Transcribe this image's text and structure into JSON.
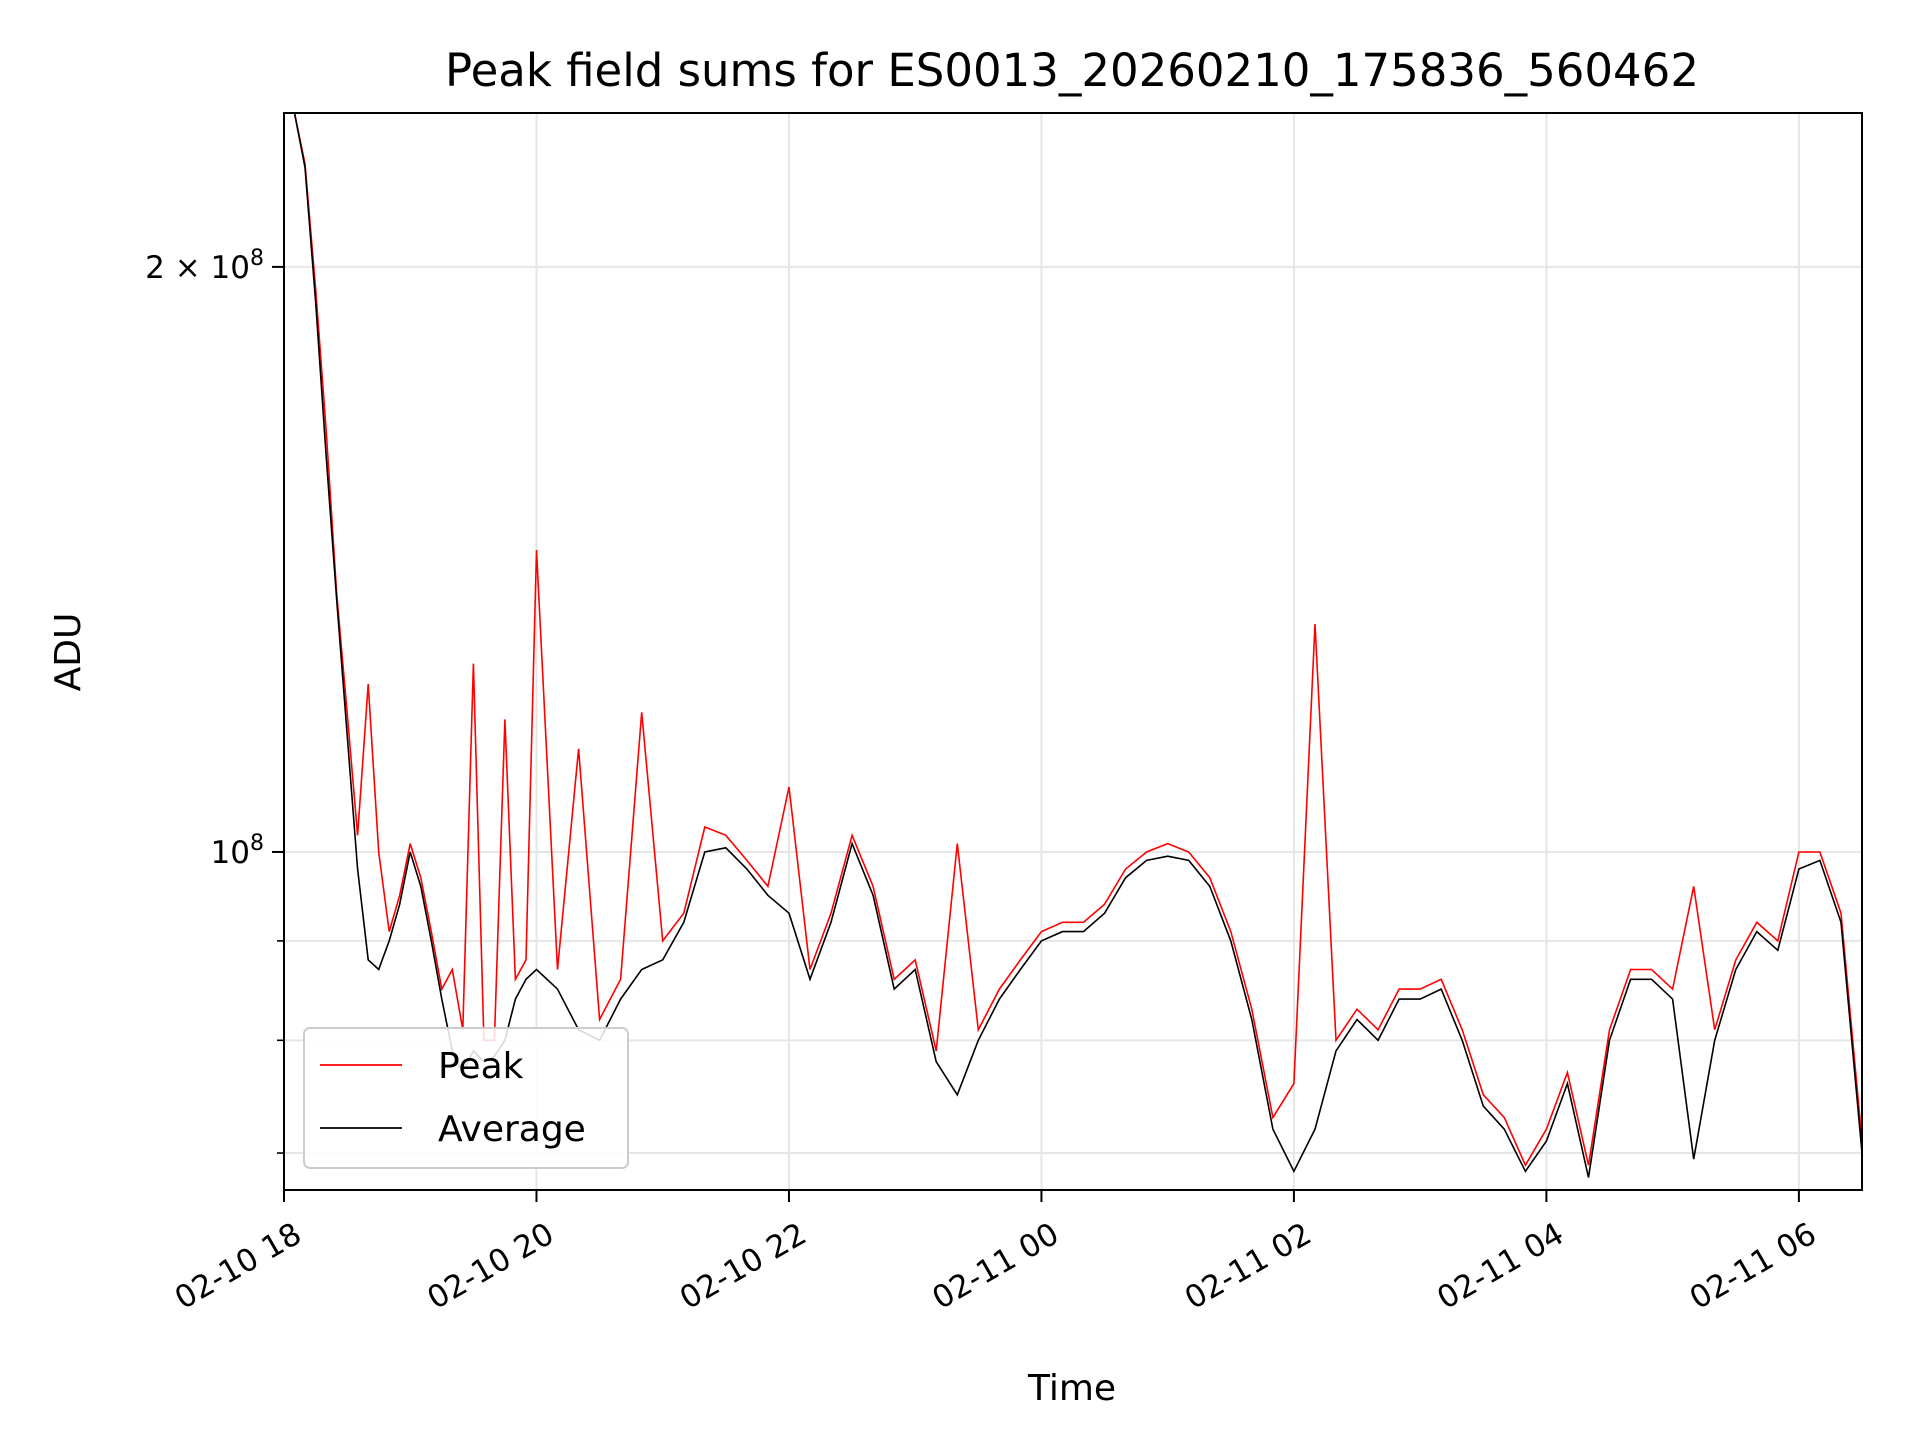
{
  "chart_data": {
    "type": "line",
    "title": "Peak field sums for ES0013_20260210_175836_560462",
    "xlabel": "Time",
    "ylabel": "ADU",
    "y_scale": "log",
    "xlim": [
      "2026-02-10 18:00",
      "2026-02-11 06:30"
    ],
    "ylim": [
      67000000,
      240000000
    ],
    "x_ticks": [
      "02-10 18",
      "02-10 20",
      "02-10 22",
      "02-11 00",
      "02-11 02",
      "02-11 04",
      "02-11 06"
    ],
    "y_ticks": [
      {
        "value": 100000000,
        "label": "10",
        "exp": "8"
      },
      {
        "value": 200000000,
        "label": "2 × 10",
        "exp": "8"
      }
    ],
    "y_minor_ticks": [
      70000000,
      80000000,
      90000000
    ],
    "grid": true,
    "legend_position": "lower-left",
    "series": [
      {
        "name": "Peak",
        "color": "#ff0000"
      },
      {
        "name": "Average",
        "color": "#000000"
      }
    ],
    "x": [
      "2026-02-10 18:00",
      "2026-02-10 18:05",
      "2026-02-10 18:10",
      "2026-02-10 18:15",
      "2026-02-10 18:20",
      "2026-02-10 18:25",
      "2026-02-10 18:30",
      "2026-02-10 18:35",
      "2026-02-10 18:40",
      "2026-02-10 18:45",
      "2026-02-10 18:50",
      "2026-02-10 18:55",
      "2026-02-10 19:00",
      "2026-02-10 19:05",
      "2026-02-10 19:10",
      "2026-02-10 19:15",
      "2026-02-10 19:20",
      "2026-02-10 19:25",
      "2026-02-10 19:30",
      "2026-02-10 19:35",
      "2026-02-10 19:40",
      "2026-02-10 19:45",
      "2026-02-10 19:50",
      "2026-02-10 19:55",
      "2026-02-10 20:00",
      "2026-02-10 20:10",
      "2026-02-10 20:20",
      "2026-02-10 20:30",
      "2026-02-10 20:40",
      "2026-02-10 20:50",
      "2026-02-10 21:00",
      "2026-02-10 21:10",
      "2026-02-10 21:20",
      "2026-02-10 21:30",
      "2026-02-10 21:40",
      "2026-02-10 21:50",
      "2026-02-10 22:00",
      "2026-02-10 22:10",
      "2026-02-10 22:20",
      "2026-02-10 22:30",
      "2026-02-10 22:40",
      "2026-02-10 22:50",
      "2026-02-10 23:00",
      "2026-02-10 23:10",
      "2026-02-10 23:20",
      "2026-02-10 23:30",
      "2026-02-10 23:40",
      "2026-02-10 23:50",
      "2026-02-11 00:00",
      "2026-02-11 00:10",
      "2026-02-11 00:20",
      "2026-02-11 00:30",
      "2026-02-11 00:40",
      "2026-02-11 00:50",
      "2026-02-11 01:00",
      "2026-02-11 01:10",
      "2026-02-11 01:20",
      "2026-02-11 01:30",
      "2026-02-11 01:40",
      "2026-02-11 01:50",
      "2026-02-11 02:00",
      "2026-02-11 02:10",
      "2026-02-11 02:20",
      "2026-02-11 02:30",
      "2026-02-11 02:40",
      "2026-02-11 02:50",
      "2026-02-11 03:00",
      "2026-02-11 03:10",
      "2026-02-11 03:20",
      "2026-02-11 03:30",
      "2026-02-11 03:40",
      "2026-02-11 03:50",
      "2026-02-11 04:00",
      "2026-02-11 04:10",
      "2026-02-11 04:20",
      "2026-02-11 04:30",
      "2026-02-11 04:40",
      "2026-02-11 04:50",
      "2026-02-11 05:00",
      "2026-02-11 05:10",
      "2026-02-11 05:20",
      "2026-02-11 05:30",
      "2026-02-11 05:40",
      "2026-02-11 05:50",
      "2026-02-11 06:00",
      "2026-02-11 06:10",
      "2026-02-11 06:20",
      "2026-02-11 06:30"
    ],
    "average": [
      240000000,
      240000000,
      225000000,
      192000000,
      160000000,
      135000000,
      115000000,
      98000000,
      88000000,
      87000000,
      90000000,
      94000000,
      100000000,
      96000000,
      90000000,
      84000000,
      79000000,
      77000000,
      79000000,
      78000000,
      78500000,
      80000000,
      84000000,
      86000000,
      87000000,
      85000000,
      81000000,
      80000000,
      84000000,
      87000000,
      88000000,
      92000000,
      100000000,
      100500000,
      98000000,
      95000000,
      93000000,
      86000000,
      92000000,
      101000000,
      95000000,
      85000000,
      87000000,
      78000000,
      75000000,
      80000000,
      84000000,
      87000000,
      90000000,
      91000000,
      91000000,
      93000000,
      97000000,
      99000000,
      99500000,
      99000000,
      96000000,
      90000000,
      82000000,
      72000000,
      68500000,
      72000000,
      79000000,
      82000000,
      80000000,
      84000000,
      84000000,
      85000000,
      80000000,
      74000000,
      72000000,
      68500000,
      71000000,
      76000000,
      68000000,
      80000000,
      86000000,
      86000000,
      84000000,
      69500000,
      80000000,
      87000000,
      91000000,
      89000000,
      98000000,
      99000000,
      92000000,
      70000000
    ],
    "peak": [
      240000000,
      240000000,
      226000000,
      195000000,
      165000000,
      136000000,
      118000000,
      102000000,
      122000000,
      100000000,
      91000000,
      95000000,
      101000000,
      97000000,
      91000000,
      85000000,
      87000000,
      81000000,
      125000000,
      80000000,
      80000000,
      117000000,
      86000000,
      88000000,
      143000000,
      87000000,
      113000000,
      82000000,
      86000000,
      118000000,
      90000000,
      93000000,
      103000000,
      102000000,
      99000000,
      96000000,
      108000000,
      87000000,
      93000000,
      102000000,
      96000000,
      86000000,
      88000000,
      79000000,
      101000000,
      81000000,
      85000000,
      88000000,
      91000000,
      92000000,
      92000000,
      94000000,
      98000000,
      100000000,
      101000000,
      100000000,
      97000000,
      91000000,
      83000000,
      73000000,
      76000000,
      131000000,
      80000000,
      83000000,
      81000000,
      85000000,
      85000000,
      86000000,
      81000000,
      75000000,
      73000000,
      69000000,
      72000000,
      77000000,
      69000000,
      81000000,
      87000000,
      87000000,
      85000000,
      96000000,
      81000000,
      88000000,
      92000000,
      90000000,
      100000000,
      100000000,
      93000000,
      71000000
    ]
  }
}
